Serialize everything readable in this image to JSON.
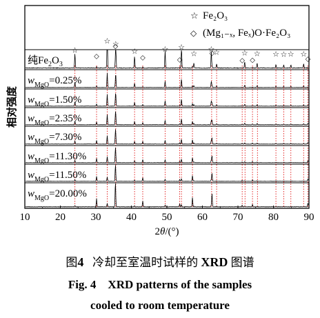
{
  "chart_data": {
    "type": "line",
    "xlabel_parts": [
      "2",
      "θ",
      "/(°)"
    ],
    "ylabel": "相对强度",
    "xlim": [
      10,
      90
    ],
    "x_ticks": [
      "10",
      "20",
      "30",
      "40",
      "50",
      "60",
      "70",
      "80",
      "90"
    ],
    "legend": {
      "fe2o3_symbol": "☆",
      "fe2o3_label": "Fe₂O₃",
      "spinel_symbol": "◇",
      "spinel_label": "(Mg₁₋ₓ, Feₓ)O·Fe₂O₃"
    },
    "series": [
      {
        "name": "纯Fe₂O₃"
      },
      {
        "name": "wMgO=0.25%"
      },
      {
        "name": "wMgO=1.50%"
      },
      {
        "name": "wMgO=2.35%"
      },
      {
        "name": "wMgO=7.30%"
      },
      {
        "name": "wMgO=11.30%"
      },
      {
        "name": "wMgO=11.50%"
      },
      {
        "name": "wMgO=20.00%"
      }
    ],
    "series_labels": [
      {
        "pre": "纯Fe",
        "sub": "2",
        "post": "O",
        "sub2": "3",
        "post2": ""
      },
      {
        "w": "w",
        "sub": "MgO",
        "val": "=0.25%"
      },
      {
        "w": "w",
        "sub": "MgO",
        "val": "=1.50%"
      },
      {
        "w": "w",
        "sub": "MgO",
        "val": "=2.35%"
      },
      {
        "w": "w",
        "sub": "MgO",
        "val": "=7.30%"
      },
      {
        "w": "w",
        "sub": "MgO",
        "val": "=11.30%"
      },
      {
        "w": "w",
        "sub": "MgO",
        "val": "=11.50%"
      },
      {
        "w": "w",
        "sub": "MgO",
        "val": "=20.00%"
      }
    ],
    "fe2o3_peaks": [
      24.1,
      33.2,
      35.6,
      40.9,
      49.5,
      54.1,
      57.6,
      62.5,
      64.0,
      71.9,
      75.4,
      80.7,
      82.9,
      84.9,
      88.5
    ],
    "spinel_peaks": [
      30.2,
      35.5,
      43.2,
      53.6,
      57.2,
      62.7,
      71.2,
      74.1,
      89.7
    ],
    "peak_heights": {
      "24.1": 0.35,
      "33.2": 0.95,
      "35.6": 0.75,
      "40.9": 0.28,
      "49.5": 0.42,
      "54.1": 0.55,
      "57.6": 0.12,
      "62.5": 0.4,
      "64.0": 0.38,
      "71.9": 0.15,
      "75.4": 0.12,
      "80.7": 0.08,
      "82.9": 0.07,
      "84.9": 0.08,
      "88.5": 0.1,
      "30.2": 0.35,
      "35.5": 1.0,
      "43.2": 0.25,
      "53.6": 0.12,
      "57.2": 0.4,
      "62.7": 0.55,
      "71.2": 0.06,
      "74.1": 0.1,
      "89.7": 0.15
    },
    "dotted_line_x": [
      24.1,
      30.2,
      33.2,
      35.6,
      40.9,
      43.2,
      49.5,
      53.6,
      54.1,
      57.2,
      62.6,
      64.0,
      71.2,
      72.0,
      74.1,
      75.5,
      80.7,
      82.9,
      84.9,
      88.5,
      89.7
    ],
    "top_fe2o3_markers": [
      24.1,
      33.2,
      35.6,
      40.9,
      49.5,
      54.1,
      57.6,
      62.5,
      64.0,
      71.9,
      75.4,
      80.7,
      82.9,
      84.9,
      88.5
    ],
    "top_spinel_markers": [
      30.2,
      35.5,
      43.2,
      53.6,
      62.7,
      71.2,
      74.1,
      89.7
    ],
    "colors": {
      "trace": "#000000",
      "guide": "#e01010",
      "frame": "#000000"
    }
  },
  "caption": {
    "cn_fig": "图",
    "cn_num": "4",
    "cn_text_a": "冷却至室温时试样的",
    "cn_xrd": "XRD",
    "cn_text_b": "图谱",
    "en_line1": "Fig. 4    XRD patterns of the samples",
    "en_line2": "cooled to room temperature"
  }
}
